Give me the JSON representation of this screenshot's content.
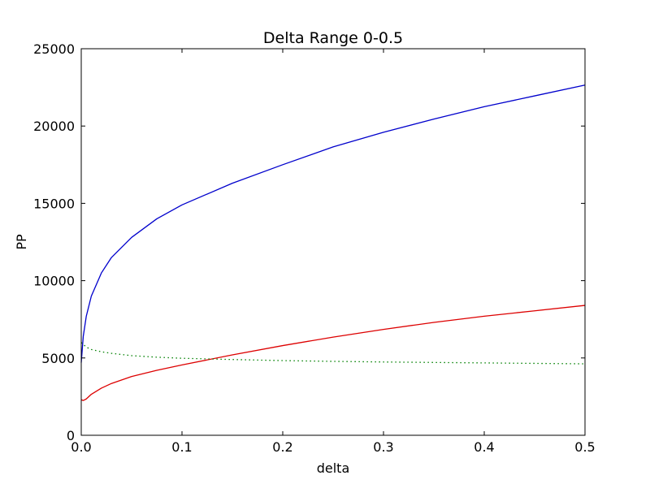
{
  "chart_data": {
    "type": "line",
    "title": "Delta Range 0-0.5",
    "xlabel": "delta",
    "ylabel": "PP",
    "xlim": [
      0,
      0.5
    ],
    "ylim": [
      0,
      25000
    ],
    "xticks": [
      "0.0",
      "0.1",
      "0.2",
      "0.3",
      "0.4",
      "0.5"
    ],
    "yticks": [
      "0",
      "5000",
      "10000",
      "15000",
      "20000",
      "25000"
    ],
    "grid": false,
    "legend": "none",
    "series": [
      {
        "color": "#0000cc",
        "style": "solid",
        "x": [
          0.0,
          0.002,
          0.005,
          0.01,
          0.02,
          0.03,
          0.05,
          0.075,
          0.1,
          0.15,
          0.2,
          0.25,
          0.3,
          0.35,
          0.4,
          0.45,
          0.5
        ],
        "y": [
          4700,
          6400,
          7700,
          9000,
          10500,
          11500,
          12800,
          14000,
          14900,
          16300,
          17500,
          18650,
          19600,
          20450,
          21250,
          21950,
          22650
        ]
      },
      {
        "color": "#dd0000",
        "style": "solid",
        "x": [
          0.0,
          0.002,
          0.005,
          0.01,
          0.02,
          0.03,
          0.05,
          0.075,
          0.1,
          0.15,
          0.2,
          0.25,
          0.3,
          0.35,
          0.4,
          0.45,
          0.5
        ],
        "y": [
          2300,
          2250,
          2350,
          2650,
          3050,
          3350,
          3800,
          4200,
          4550,
          5200,
          5800,
          6350,
          6850,
          7300,
          7700,
          8050,
          8400
        ]
      },
      {
        "color": "#008000",
        "style": "dotted",
        "x": [
          0.0,
          0.005,
          0.01,
          0.02,
          0.03,
          0.05,
          0.075,
          0.1,
          0.15,
          0.2,
          0.25,
          0.3,
          0.35,
          0.4,
          0.45,
          0.5
        ],
        "y": [
          6000,
          5700,
          5550,
          5400,
          5300,
          5150,
          5050,
          4980,
          4900,
          4830,
          4780,
          4740,
          4710,
          4680,
          4650,
          4620
        ]
      }
    ]
  }
}
